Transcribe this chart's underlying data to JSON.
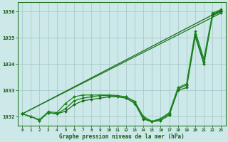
{
  "title": "Graphe pression niveau de la mer (hPa)",
  "background_color": "#cce8e8",
  "grid_color": "#aacccc",
  "xlim": [
    -0.5,
    23.5
  ],
  "ylim": [
    1031.65,
    1036.35
  ],
  "yticks": [
    1032,
    1033,
    1034,
    1035,
    1036
  ],
  "xticks": [
    0,
    1,
    2,
    3,
    4,
    5,
    6,
    7,
    8,
    9,
    10,
    11,
    12,
    13,
    14,
    15,
    16,
    17,
    18,
    19,
    20,
    21,
    22,
    23
  ],
  "series": [
    {
      "x": [
        0,
        1,
        2,
        3,
        4,
        5,
        6,
        7,
        8,
        9,
        10,
        11,
        12,
        13,
        14,
        15,
        16,
        17,
        18,
        19,
        20,
        21,
        22,
        23
      ],
      "y": [
        1032.1,
        1032.0,
        1031.85,
        1032.15,
        1032.1,
        1032.2,
        1032.45,
        1032.6,
        1032.65,
        1032.7,
        1032.75,
        1032.75,
        1032.7,
        1032.5,
        1031.9,
        1031.8,
        1031.85,
        1032.05,
        1033.0,
        1033.1,
        1035.05,
        1034.0,
        1035.85,
        1036.0
      ],
      "color": "#1a6b1a",
      "marker": "D",
      "markersize": 2.0,
      "linewidth": 0.9
    },
    {
      "x": [
        0,
        1,
        2,
        3,
        4,
        5,
        6,
        7,
        8,
        9,
        10,
        11,
        12,
        13,
        14,
        15,
        16,
        17,
        18,
        19,
        20,
        21,
        22,
        23
      ],
      "y": [
        1032.1,
        1032.0,
        1031.85,
        1032.15,
        1032.1,
        1032.3,
        1032.6,
        1032.7,
        1032.75,
        1032.8,
        1032.8,
        1032.78,
        1032.75,
        1032.55,
        1031.95,
        1031.8,
        1031.9,
        1032.1,
        1033.05,
        1033.2,
        1035.15,
        1034.1,
        1035.9,
        1036.05
      ],
      "color": "#1a7a1a",
      "marker": "D",
      "markersize": 2.0,
      "linewidth": 0.9
    },
    {
      "x": [
        0,
        1,
        2,
        3,
        4,
        5,
        6,
        7,
        8,
        9,
        10,
        11,
        12,
        13,
        14,
        15,
        16,
        17,
        18,
        19,
        20,
        21,
        22,
        23
      ],
      "y": [
        1032.1,
        1032.0,
        1031.88,
        1032.18,
        1032.15,
        1032.5,
        1032.75,
        1032.82,
        1032.82,
        1032.82,
        1032.82,
        1032.8,
        1032.75,
        1032.58,
        1032.0,
        1031.82,
        1031.92,
        1032.15,
        1033.1,
        1033.25,
        1035.25,
        1034.2,
        1035.95,
        1036.08
      ],
      "color": "#1a8b1a",
      "marker": "D",
      "markersize": 2.0,
      "linewidth": 0.9
    },
    {
      "x": [
        0,
        23
      ],
      "y": [
        1032.1,
        1036.05
      ],
      "color": "#1a6b1a",
      "marker": "D",
      "markersize": 2.0,
      "linewidth": 0.9
    },
    {
      "x": [
        0,
        23
      ],
      "y": [
        1032.1,
        1035.95
      ],
      "color": "#1a7a1a",
      "marker": "D",
      "markersize": 2.0,
      "linewidth": 0.9
    }
  ],
  "xlabel_fontsize": 5.5,
  "ytick_fontsize": 5.2,
  "xtick_fontsize": 4.2
}
